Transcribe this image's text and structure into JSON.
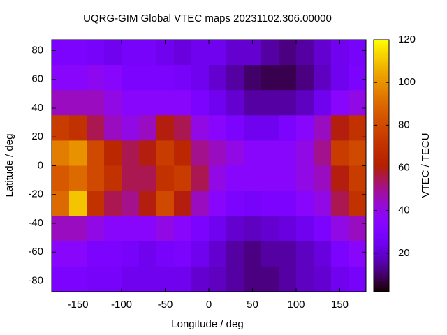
{
  "chart_data": {
    "type": "heatmap",
    "title": "UQRG-GIM Global VTEC maps 20231102.306.00000",
    "x_label": "Longitude / deg",
    "y_label": "Latitude / deg",
    "colorbar_label": "VTEC / TECU",
    "x": [
      -170,
      -150,
      -130,
      -110,
      -90,
      -70,
      -50,
      -30,
      -10,
      10,
      30,
      50,
      70,
      90,
      110,
      130,
      150,
      170
    ],
    "y": [
      78.75,
      61.25,
      43.75,
      26.25,
      8.75,
      -8.75,
      -26.25,
      -43.75,
      -61.25,
      -78.75
    ],
    "z": [
      [
        30,
        30,
        28,
        25,
        28,
        28,
        25,
        22,
        25,
        25,
        20,
        20,
        15,
        12,
        15,
        20,
        25,
        28
      ],
      [
        35,
        35,
        38,
        35,
        30,
        30,
        30,
        28,
        25,
        20,
        15,
        10,
        8,
        8,
        12,
        18,
        25,
        30
      ],
      [
        45,
        45,
        45,
        40,
        35,
        35,
        35,
        35,
        30,
        25,
        20,
        15,
        15,
        15,
        18,
        25,
        35,
        40
      ],
      [
        75,
        70,
        55,
        45,
        40,
        45,
        60,
        55,
        40,
        35,
        30,
        25,
        25,
        30,
        35,
        45,
        60,
        70
      ],
      [
        95,
        100,
        80,
        65,
        55,
        60,
        75,
        65,
        50,
        45,
        40,
        35,
        35,
        35,
        40,
        50,
        75,
        80
      ],
      [
        85,
        90,
        80,
        70,
        55,
        55,
        70,
        75,
        55,
        40,
        35,
        35,
        35,
        35,
        40,
        45,
        60,
        75
      ],
      [
        90,
        110,
        70,
        55,
        50,
        60,
        80,
        60,
        45,
        35,
        30,
        28,
        30,
        30,
        35,
        40,
        55,
        70
      ],
      [
        45,
        45,
        40,
        35,
        35,
        35,
        40,
        35,
        30,
        25,
        20,
        18,
        20,
        22,
        25,
        30,
        40,
        45
      ],
      [
        35,
        35,
        30,
        30,
        28,
        25,
        28,
        30,
        25,
        20,
        15,
        12,
        15,
        15,
        18,
        22,
        30,
        35
      ],
      [
        30,
        30,
        28,
        28,
        25,
        25,
        25,
        25,
        20,
        18,
        15,
        12,
        12,
        15,
        18,
        20,
        25,
        28
      ]
    ],
    "xlim": [
      -180,
      180
    ],
    "ylim": [
      -87.5,
      87.5
    ],
    "xticks": [
      -150,
      -100,
      -50,
      0,
      50,
      100,
      150
    ],
    "yticks": [
      -80,
      -60,
      -40,
      -20,
      0,
      20,
      40,
      60,
      80
    ],
    "clim": [
      2,
      120
    ],
    "cticks": [
      20,
      40,
      60,
      80,
      100,
      120
    ]
  }
}
